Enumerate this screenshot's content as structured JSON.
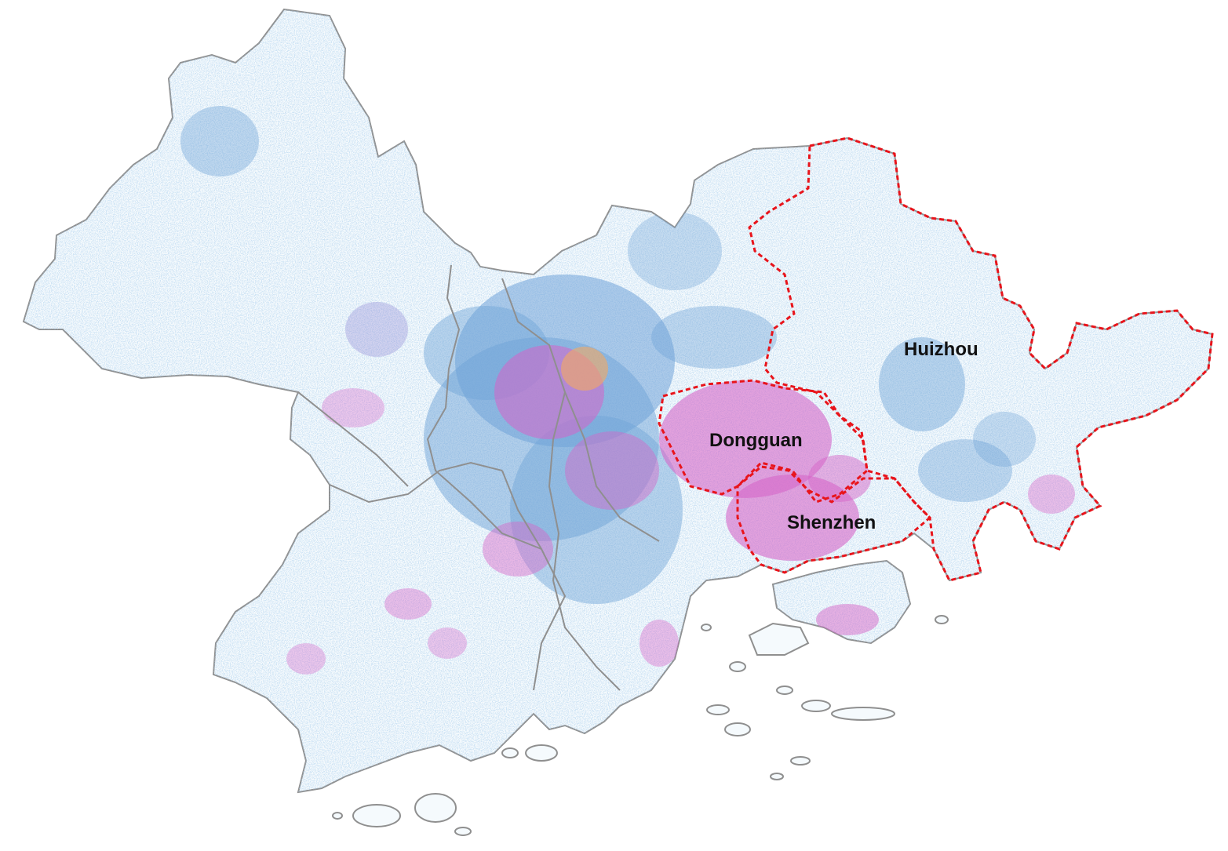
{
  "map": {
    "colors": {
      "land": "#f5fafd",
      "outline": "#8f8f8f",
      "highlight_border": "#e8141b",
      "density_low": "#6fa3d8",
      "density_mid": "#8f86d4",
      "density_high": "#d665c8",
      "density_peak": "#f4a860"
    },
    "highlighted_cities": [
      {
        "id": "huizhou",
        "label": "Huizhou"
      },
      {
        "id": "dongguan",
        "label": "Dongguan"
      },
      {
        "id": "shenzhen",
        "label": "Shenzhen"
      }
    ]
  }
}
